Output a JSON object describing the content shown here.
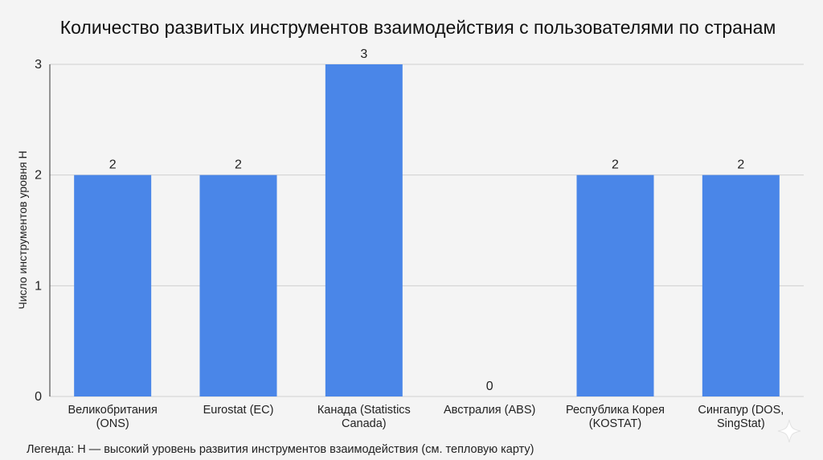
{
  "chart_data": {
    "type": "bar",
    "title": "Количество развитых инструментов взаимодействия с пользователями по странам",
    "xlabel": "",
    "ylabel": "Число инструментов уровня H",
    "ylim": [
      0,
      3
    ],
    "yticks": [
      0,
      1,
      2,
      3
    ],
    "grid": true,
    "categories": [
      [
        "Великобритания",
        "(ONS)"
      ],
      [
        "Eurostat (EC)"
      ],
      [
        "Канада (Statistics",
        "Canada)"
      ],
      [
        "Австралия (ABS)"
      ],
      [
        "Республика Корея",
        "(KOSTAT)"
      ],
      [
        "Сингапур (DOS,",
        "SingStat)"
      ]
    ],
    "values": [
      2,
      2,
      3,
      0,
      2,
      2
    ],
    "bar_color": "#4a86e8",
    "note": "Легенда: H — высокий уровень развития инструментов взаимодействия (см. тепловую карту)"
  }
}
